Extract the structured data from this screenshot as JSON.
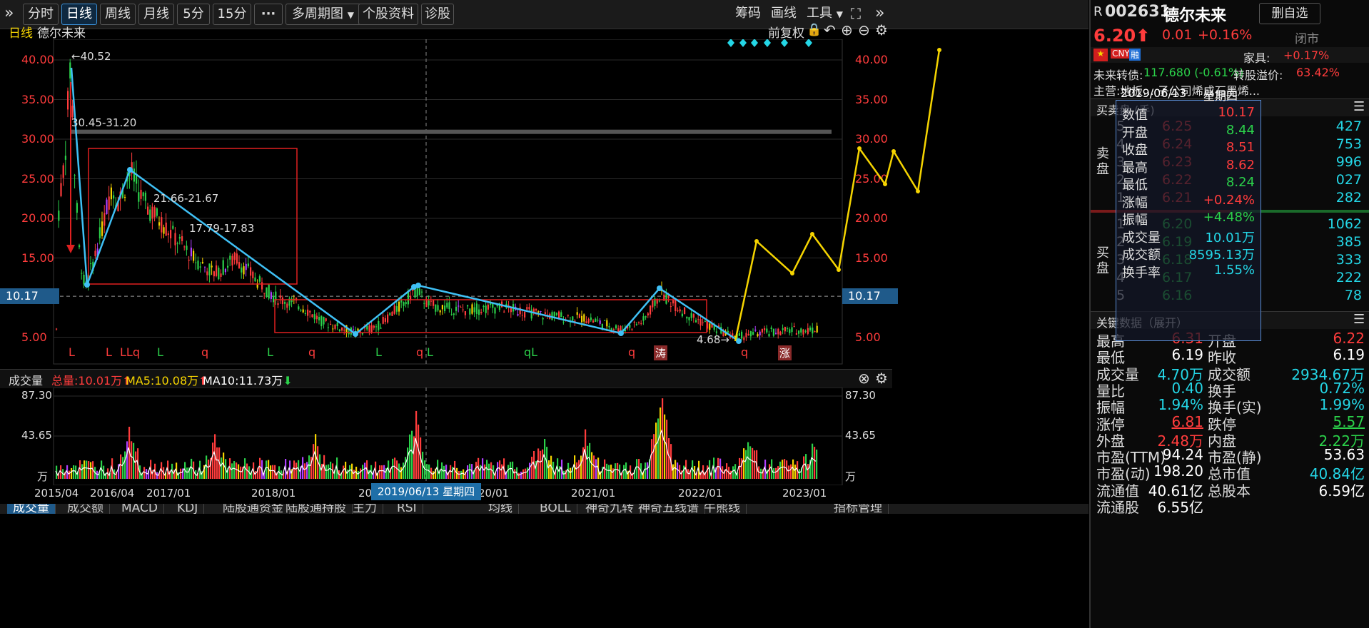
{
  "toolbar": {
    "expand_left": "»",
    "tabs": [
      "分时",
      "日线",
      "周线",
      "月线",
      "5分",
      "15分"
    ],
    "more": "···",
    "multi_period": "多周期图",
    "stock_info": "个股资料",
    "diagnose": "诊股",
    "chips": "筹码",
    "draw": "画线",
    "tools": "工具",
    "expand_right": "»"
  },
  "chart_header": {
    "period": "日线",
    "stock_name": "德尔未来",
    "adjust": "前复权"
  },
  "main_chart": {
    "y_ticks": [
      "40.00",
      "35.00",
      "30.00",
      "25.00",
      "20.00",
      "15.00",
      "10.17",
      "5.00"
    ],
    "current_price_label": "10.17",
    "annotations": {
      "high": "←40.52",
      "range1": "30.45-31.20",
      "range2": "21.66-21.67",
      "range3": "17.79-17.83",
      "low": "4.68→"
    },
    "signals": [
      "L",
      "L",
      "LLq",
      "L",
      "q",
      "L",
      "q",
      "L",
      "q",
      "L",
      "qL",
      "q",
      "涛",
      "q",
      "涨"
    ]
  },
  "volume_chart": {
    "title": "成交量",
    "total": "总量:10.01万",
    "ma5": "MA5:10.08万",
    "ma10": "MA10:11.73万",
    "y_ticks": [
      "87.30",
      "43.65",
      "万"
    ],
    "x_ticks": [
      "2015/04",
      "2016/04",
      "2017/01",
      "2018/01",
      "20",
      "20/01",
      "2021/01",
      "2022/01",
      "2023/01"
    ],
    "cursor_date": "2019/06/13 星期四"
  },
  "bottom_tabs": [
    "成交量",
    "成交额",
    "MACD",
    "KDJ",
    "陆股通资金",
    "陆股通持股",
    "主力",
    "RSI",
    "均线",
    "BOLL",
    "神奇九转",
    "神奇五线谱",
    "牛熊线",
    "指标管理"
  ],
  "quote": {
    "market": "R",
    "code": "002631",
    "name": "德尔未来",
    "price": "6.20",
    "change": "0.01",
    "change_pct": "+0.16%",
    "remove_btn": "删自选",
    "status": "闭市",
    "badges": [
      "CNY",
      "融"
    ],
    "industry_label": "家具:",
    "industry_pct": "+0.17%",
    "bond": "未来转债:",
    "bond_val": "117.680 (-0.61%)",
    "premium_label": "转股溢价:",
    "premium": "63.42%",
    "business": "主营:地板... 子公司烯成石墨烯...",
    "orderbook_title": "买卖盘 (手)",
    "sell_label": "卖盘",
    "buy_label": "买盘",
    "sell_rows": [
      [
        "5",
        "6.25",
        "427"
      ],
      [
        "4",
        "6.24",
        "753"
      ],
      [
        "3",
        "6.23",
        "996"
      ],
      [
        "2",
        "6.22",
        "027"
      ],
      [
        "1",
        "6.21",
        "282"
      ]
    ],
    "buy_rows": [
      [
        "1",
        "6.20",
        "1062"
      ],
      [
        "2",
        "6.19",
        "385"
      ],
      [
        "3",
        "6.18",
        "333"
      ],
      [
        "4",
        "6.17",
        "222"
      ],
      [
        "5",
        "6.16",
        "78"
      ]
    ]
  },
  "tooltip": {
    "date": "2019/06/13",
    "weekday": "星期四",
    "rows": [
      [
        "数值",
        "10.17"
      ],
      [
        "开盘",
        "8.44"
      ],
      [
        "收盘",
        "8.51"
      ],
      [
        "最高",
        "8.62"
      ],
      [
        "最低",
        "8.24"
      ],
      [
        "涨幅",
        "+0.24%"
      ],
      [
        "振幅",
        "+4.48%"
      ],
      [
        "成交量",
        "10.01万"
      ],
      [
        "成交额",
        "8595.13万"
      ],
      [
        "换手率",
        "1.55%"
      ]
    ]
  },
  "key_data": {
    "title": "关键数据（展开）",
    "rows": [
      [
        "最高",
        "6.31",
        "开盘",
        "6.22"
      ],
      [
        "最低",
        "6.19",
        "昨收",
        "6.19"
      ],
      [
        "成交量",
        "4.70万",
        "成交额",
        "2934.67万"
      ],
      [
        "量比",
        "0.40",
        "换手",
        "0.72%"
      ],
      [
        "振幅",
        "1.94%",
        "换手(实)",
        "1.99%"
      ],
      [
        "涨停",
        "6.81",
        "跌停",
        "5.57"
      ],
      [
        "外盘",
        "2.48万",
        "内盘",
        "2.22万"
      ],
      [
        "市盈(TTM)",
        "94.24",
        "市盈(静)",
        "53.63"
      ],
      [
        "市盈(动)",
        "198.20",
        "总市值",
        "40.84亿"
      ],
      [
        "流通值",
        "40.61亿",
        "总股本",
        "6.59亿"
      ],
      [
        "流通股",
        "6.55亿",
        "",
        ""
      ]
    ]
  },
  "colors": {
    "up": "#ff3c3c",
    "down": "#2bd14a",
    "accent": "#24d6e6",
    "ma": "#f5d400"
  }
}
